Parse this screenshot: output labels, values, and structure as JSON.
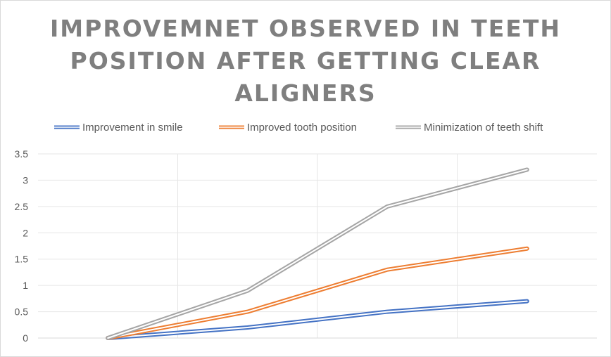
{
  "chart_data": {
    "type": "line",
    "title_lines": [
      "IMPROVEMNET OBSERVED IN TEETH",
      "POSITION AFTER GETTING CLEAR",
      "ALIGNERS"
    ],
    "xlabel": "",
    "ylabel": "",
    "categories": [
      "",
      "",
      "",
      ""
    ],
    "ylim": [
      0,
      3.5
    ],
    "yticks": [
      "0",
      "0.5",
      "1",
      "1.5",
      "2",
      "2.5",
      "3",
      "3.5"
    ],
    "grid": true,
    "legend_position": "top",
    "series": [
      {
        "name": "Improvement in smile",
        "color": "#4472c4",
        "values": [
          0,
          0.2,
          0.5,
          0.7
        ]
      },
      {
        "name": "Improved tooth position",
        "color": "#ed7d31",
        "values": [
          0,
          0.5,
          1.3,
          1.7
        ]
      },
      {
        "name": "Minimization of teeth shift",
        "color": "#a5a5a5",
        "values": [
          0,
          0.9,
          2.5,
          3.2
        ]
      }
    ]
  }
}
